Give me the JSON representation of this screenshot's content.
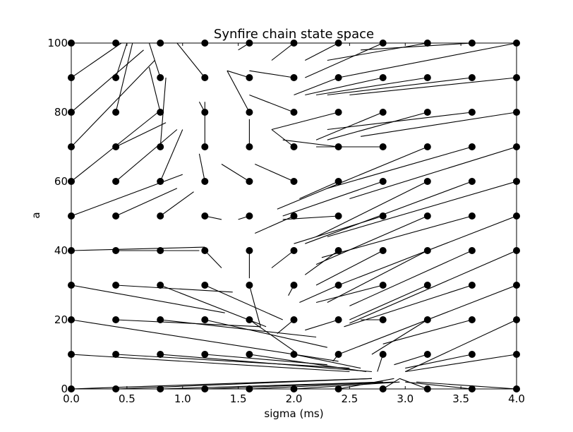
{
  "chart_data": {
    "type": "scatter",
    "title": "Synfire chain state space",
    "xlabel": "sigma (ms)",
    "ylabel": "a",
    "xlim": [
      0,
      4
    ],
    "ylim": [
      0,
      100
    ],
    "x_ticks": [
      "0.0",
      "0.5",
      "1.0",
      "1.5",
      "2.0",
      "2.5",
      "3.0",
      "3.5",
      "4.0"
    ],
    "y_ticks": [
      "0",
      "20",
      "40",
      "60",
      "80",
      "100"
    ],
    "grid": false,
    "legend": "none",
    "grid_points": {
      "sigma": [
        0,
        0.4,
        0.8,
        1.2,
        1.6,
        2.0,
        2.4,
        2.8,
        3.2,
        3.6,
        4.0
      ],
      "a": [
        0,
        10,
        20,
        30,
        40,
        50,
        60,
        70,
        80,
        90,
        100
      ]
    },
    "trajectories": [
      [
        [
          0,
          100
        ],
        [
          0.3,
          100
        ]
      ],
      [
        [
          0,
          90
        ],
        [
          0.45,
          100
        ]
      ],
      [
        [
          0,
          80
        ],
        [
          0.65,
          98
        ]
      ],
      [
        [
          0,
          70
        ],
        [
          0.75,
          95
        ]
      ],
      [
        [
          0,
          60
        ],
        [
          0.78,
          80
        ]
      ],
      [
        [
          0,
          50
        ],
        [
          1.0,
          62
        ]
      ],
      [
        [
          0,
          40
        ],
        [
          1.2,
          41
        ]
      ],
      [
        [
          0,
          30
        ],
        [
          1.38,
          22
        ]
      ],
      [
        [
          0,
          20
        ],
        [
          2.4,
          8
        ]
      ],
      [
        [
          0,
          10
        ],
        [
          2.5,
          5
        ]
      ],
      [
        [
          0,
          0
        ],
        [
          2.7,
          3
        ]
      ],
      [
        [
          0.4,
          100
        ],
        [
          0.7,
          100
        ]
      ],
      [
        [
          0.4,
          90
        ],
        [
          0.5,
          100
        ]
      ],
      [
        [
          0.4,
          80
        ],
        [
          0.55,
          100
        ]
      ],
      [
        [
          0.4,
          70
        ],
        [
          0.85,
          77
        ]
      ],
      [
        [
          0.4,
          60
        ],
        [
          0.95,
          75
        ]
      ],
      [
        [
          0.4,
          50
        ],
        [
          0.95,
          58
        ]
      ],
      [
        [
          0.4,
          40
        ],
        [
          0.95,
          40
        ]
      ],
      [
        [
          0.4,
          30
        ],
        [
          1.45,
          28
        ]
      ],
      [
        [
          0.4,
          20
        ],
        [
          1.7,
          18
        ]
      ],
      [
        [
          0.4,
          10
        ],
        [
          2.5,
          6
        ]
      ],
      [
        [
          0.4,
          0
        ],
        [
          2.7,
          3
        ]
      ],
      [
        [
          0.8,
          100
        ],
        [
          0.75,
          100
        ]
      ],
      [
        [
          0.8,
          90
        ],
        [
          0.7,
          100
        ]
      ],
      [
        [
          0.8,
          80
        ],
        [
          0.7,
          93
        ]
      ],
      [
        [
          0.8,
          70
        ],
        [
          0.85,
          90
        ]
      ],
      [
        [
          0.8,
          60
        ],
        [
          1.0,
          75
        ]
      ],
      [
        [
          0.8,
          50
        ],
        [
          1.1,
          57
        ]
      ],
      [
        [
          0.8,
          40
        ],
        [
          1.15,
          40
        ]
      ],
      [
        [
          0.8,
          30
        ],
        [
          1.75,
          18
        ]
      ],
      [
        [
          0.8,
          20
        ],
        [
          2.2,
          15
        ]
      ],
      [
        [
          0.8,
          10
        ],
        [
          2.7,
          5
        ]
      ],
      [
        [
          0.8,
          0
        ],
        [
          2.8,
          2
        ]
      ],
      [
        [
          1.2,
          100
        ],
        [
          0.95,
          100
        ]
      ],
      [
        [
          1.2,
          90
        ],
        [
          0.95,
          100
        ]
      ],
      [
        [
          1.2,
          80
        ],
        [
          1.15,
          83
        ]
      ],
      [
        [
          1.2,
          70
        ],
        [
          1.2,
          83
        ]
      ],
      [
        [
          1.2,
          60
        ],
        [
          1.15,
          68
        ]
      ],
      [
        [
          1.2,
          50
        ],
        [
          1.35,
          49
        ]
      ],
      [
        [
          1.2,
          40
        ],
        [
          1.35,
          35
        ]
      ],
      [
        [
          1.2,
          30
        ],
        [
          1.9,
          20
        ]
      ],
      [
        [
          1.2,
          20
        ],
        [
          2.3,
          12
        ]
      ],
      [
        [
          1.2,
          10
        ],
        [
          2.3,
          7
        ]
      ],
      [
        [
          1.2,
          0
        ],
        [
          2.8,
          2
        ]
      ],
      [
        [
          1.6,
          100
        ],
        [
          1.5,
          98
        ]
      ],
      [
        [
          1.6,
          90
        ],
        [
          1.4,
          92
        ]
      ],
      [
        [
          1.6,
          80
        ],
        [
          1.4,
          92
        ]
      ],
      [
        [
          1.6,
          70
        ],
        [
          1.6,
          78
        ]
      ],
      [
        [
          1.6,
          60
        ],
        [
          1.35,
          65
        ]
      ],
      [
        [
          1.6,
          50
        ],
        [
          1.5,
          49
        ]
      ],
      [
        [
          1.6,
          40
        ],
        [
          1.6,
          32
        ]
      ],
      [
        [
          1.6,
          30
        ],
        [
          1.7,
          18
        ]
      ],
      [
        [
          1.6,
          20
        ],
        [
          2.0,
          11
        ]
      ],
      [
        [
          1.6,
          10
        ],
        [
          2.65,
          5
        ]
      ],
      [
        [
          1.6,
          0
        ],
        [
          2.9,
          2
        ]
      ],
      [
        [
          2.0,
          100
        ],
        [
          1.8,
          95
        ]
      ],
      [
        [
          2.0,
          90
        ],
        [
          1.6,
          92
        ]
      ],
      [
        [
          2.0,
          80
        ],
        [
          1.6,
          85
        ]
      ],
      [
        [
          2.0,
          70
        ],
        [
          1.8,
          75
        ]
      ],
      [
        [
          2.0,
          60
        ],
        [
          1.65,
          65
        ]
      ],
      [
        [
          2.0,
          50
        ],
        [
          1.65,
          45
        ]
      ],
      [
        [
          2.0,
          40
        ],
        [
          1.8,
          35
        ]
      ],
      [
        [
          2.0,
          30
        ],
        [
          1.95,
          27
        ]
      ],
      [
        [
          2.0,
          20
        ],
        [
          1.85,
          16
        ]
      ],
      [
        [
          2.0,
          10
        ],
        [
          2.6,
          6
        ]
      ],
      [
        [
          2.0,
          0
        ],
        [
          2.95,
          2
        ]
      ],
      [
        [
          2.4,
          100
        ],
        [
          2.1,
          95
        ]
      ],
      [
        [
          2.4,
          90
        ],
        [
          2.0,
          85
        ]
      ],
      [
        [
          2.4,
          80
        ],
        [
          1.8,
          75
        ]
      ],
      [
        [
          2.4,
          70
        ],
        [
          1.9,
          72
        ]
      ],
      [
        [
          2.4,
          60
        ],
        [
          2.05,
          55
        ]
      ],
      [
        [
          2.4,
          50
        ],
        [
          1.9,
          49
        ]
      ],
      [
        [
          2.4,
          40
        ],
        [
          2.1,
          33
        ]
      ],
      [
        [
          2.4,
          30
        ],
        [
          2.05,
          25
        ]
      ],
      [
        [
          2.4,
          20
        ],
        [
          2.1,
          17
        ]
      ],
      [
        [
          2.4,
          10
        ],
        [
          2.35,
          8
        ]
      ],
      [
        [
          2.4,
          0
        ],
        [
          2.9,
          3
        ]
      ],
      [
        [
          2.8,
          100
        ],
        [
          2.1,
          90
        ]
      ],
      [
        [
          2.8,
          90
        ],
        [
          2.1,
          85
        ]
      ],
      [
        [
          2.8,
          80
        ],
        [
          2.2,
          72
        ]
      ],
      [
        [
          2.8,
          70
        ],
        [
          2.2,
          70
        ]
      ],
      [
        [
          2.8,
          60
        ],
        [
          1.9,
          50
        ]
      ],
      [
        [
          2.8,
          50
        ],
        [
          2.0,
          42
        ]
      ],
      [
        [
          2.8,
          40
        ],
        [
          2.2,
          30
        ]
      ],
      [
        [
          2.8,
          30
        ],
        [
          2.2,
          25
        ]
      ],
      [
        [
          2.8,
          20
        ],
        [
          2.6,
          20
        ]
      ],
      [
        [
          2.8,
          10
        ],
        [
          2.75,
          5
        ]
      ],
      [
        [
          2.8,
          0
        ],
        [
          2.95,
          3
        ]
      ],
      [
        [
          3.2,
          100
        ],
        [
          2.3,
          95
        ]
      ],
      [
        [
          3.2,
          90
        ],
        [
          2.2,
          85
        ]
      ],
      [
        [
          3.2,
          80
        ],
        [
          2.3,
          72
        ]
      ],
      [
        [
          3.2,
          70
        ],
        [
          1.85,
          52
        ]
      ],
      [
        [
          3.2,
          60
        ],
        [
          2.2,
          44
        ]
      ],
      [
        [
          3.2,
          50
        ],
        [
          2.2,
          36
        ]
      ],
      [
        [
          3.2,
          40
        ],
        [
          2.3,
          25
        ]
      ],
      [
        [
          3.2,
          30
        ],
        [
          2.5,
          20
        ]
      ],
      [
        [
          3.2,
          20
        ],
        [
          2.7,
          10
        ]
      ],
      [
        [
          3.2,
          10
        ],
        [
          2.9,
          7
        ]
      ],
      [
        [
          3.2,
          0
        ],
        [
          2.95,
          3
        ]
      ],
      [
        [
          3.6,
          100
        ],
        [
          2.6,
          98
        ]
      ],
      [
        [
          3.6,
          90
        ],
        [
          2.3,
          85
        ]
      ],
      [
        [
          3.6,
          80
        ],
        [
          2.3,
          75
        ]
      ],
      [
        [
          3.6,
          70
        ],
        [
          2.3,
          58
        ]
      ],
      [
        [
          3.6,
          60
        ],
        [
          2.1,
          42
        ]
      ],
      [
        [
          3.6,
          50
        ],
        [
          2.25,
          38
        ]
      ],
      [
        [
          3.6,
          40
        ],
        [
          2.5,
          24
        ]
      ],
      [
        [
          3.6,
          30
        ],
        [
          2.45,
          18
        ]
      ],
      [
        [
          3.6,
          20
        ],
        [
          2.8,
          13
        ]
      ],
      [
        [
          3.6,
          10
        ],
        [
          3.0,
          6
        ]
      ],
      [
        [
          3.6,
          0
        ],
        [
          3.0,
          2
        ]
      ],
      [
        [
          4.0,
          100
        ],
        [
          2.4,
          90
        ]
      ],
      [
        [
          4.0,
          90
        ],
        [
          2.5,
          85
        ]
      ],
      [
        [
          4.0,
          80
        ],
        [
          2.6,
          73
        ]
      ],
      [
        [
          4.0,
          70
        ],
        [
          2.5,
          55
        ]
      ],
      [
        [
          4.0,
          60
        ],
        [
          2.3,
          44
        ]
      ],
      [
        [
          4.0,
          50
        ],
        [
          2.4,
          30
        ]
      ],
      [
        [
          4.0,
          40
        ],
        [
          2.5,
          19
        ]
      ],
      [
        [
          4.0,
          30
        ],
        [
          2.4,
          10
        ]
      ],
      [
        [
          4.0,
          20
        ],
        [
          3.0,
          5
        ]
      ],
      [
        [
          4.0,
          10
        ],
        [
          3.0,
          5
        ]
      ],
      [
        [
          4.0,
          0
        ],
        [
          3.1,
          2
        ]
      ]
    ]
  }
}
